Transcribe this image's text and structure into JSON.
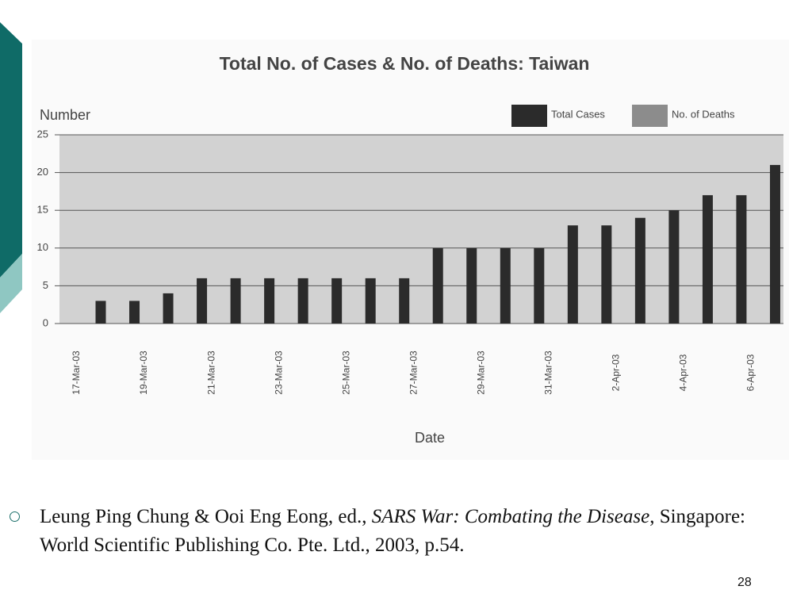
{
  "chart_data": {
    "type": "bar",
    "title": "Total No. of Cases & No. of Deaths: Taiwan",
    "y_label": "Number",
    "x_label": "Date",
    "categories": [
      "17-Mar-03",
      null,
      "19-Mar-03",
      null,
      "21-Mar-03",
      null,
      "23-Mar-03",
      null,
      "25-Mar-03",
      null,
      "27-Mar-03",
      null,
      "29-Mar-03",
      null,
      "31-Mar-03",
      null,
      "2-Apr-03",
      null,
      "4-Apr-03",
      null,
      "6-Apr-03"
    ],
    "series": [
      {
        "name": "Total Cases",
        "color": "#2b2b2b",
        "values": [
          3,
          3,
          4,
          6,
          6,
          6,
          6,
          6,
          6,
          6,
          10,
          10,
          10,
          10,
          13,
          13,
          14,
          15,
          17,
          17,
          21
        ]
      },
      {
        "name": "No. of Deaths",
        "color": "#8c8c8c",
        "values": [
          0,
          0,
          0,
          0,
          0,
          0,
          0,
          0,
          0,
          0,
          0,
          0,
          0,
          0,
          0,
          0,
          0,
          0,
          0,
          0,
          0
        ]
      }
    ],
    "ylim": [
      0,
      25
    ],
    "yticks": [
      0,
      5,
      10,
      15,
      20,
      25
    ],
    "grid": true,
    "legend": "top-right"
  },
  "citation": {
    "before": "Leung Ping Chung & Ooi Eng Eong, ed., ",
    "italic": "SARS War: Combating the Disease",
    "after": ", Singapore: World Scientific Publishing Co. Pte. Ltd., 2003, p.54."
  },
  "page_number": "28"
}
